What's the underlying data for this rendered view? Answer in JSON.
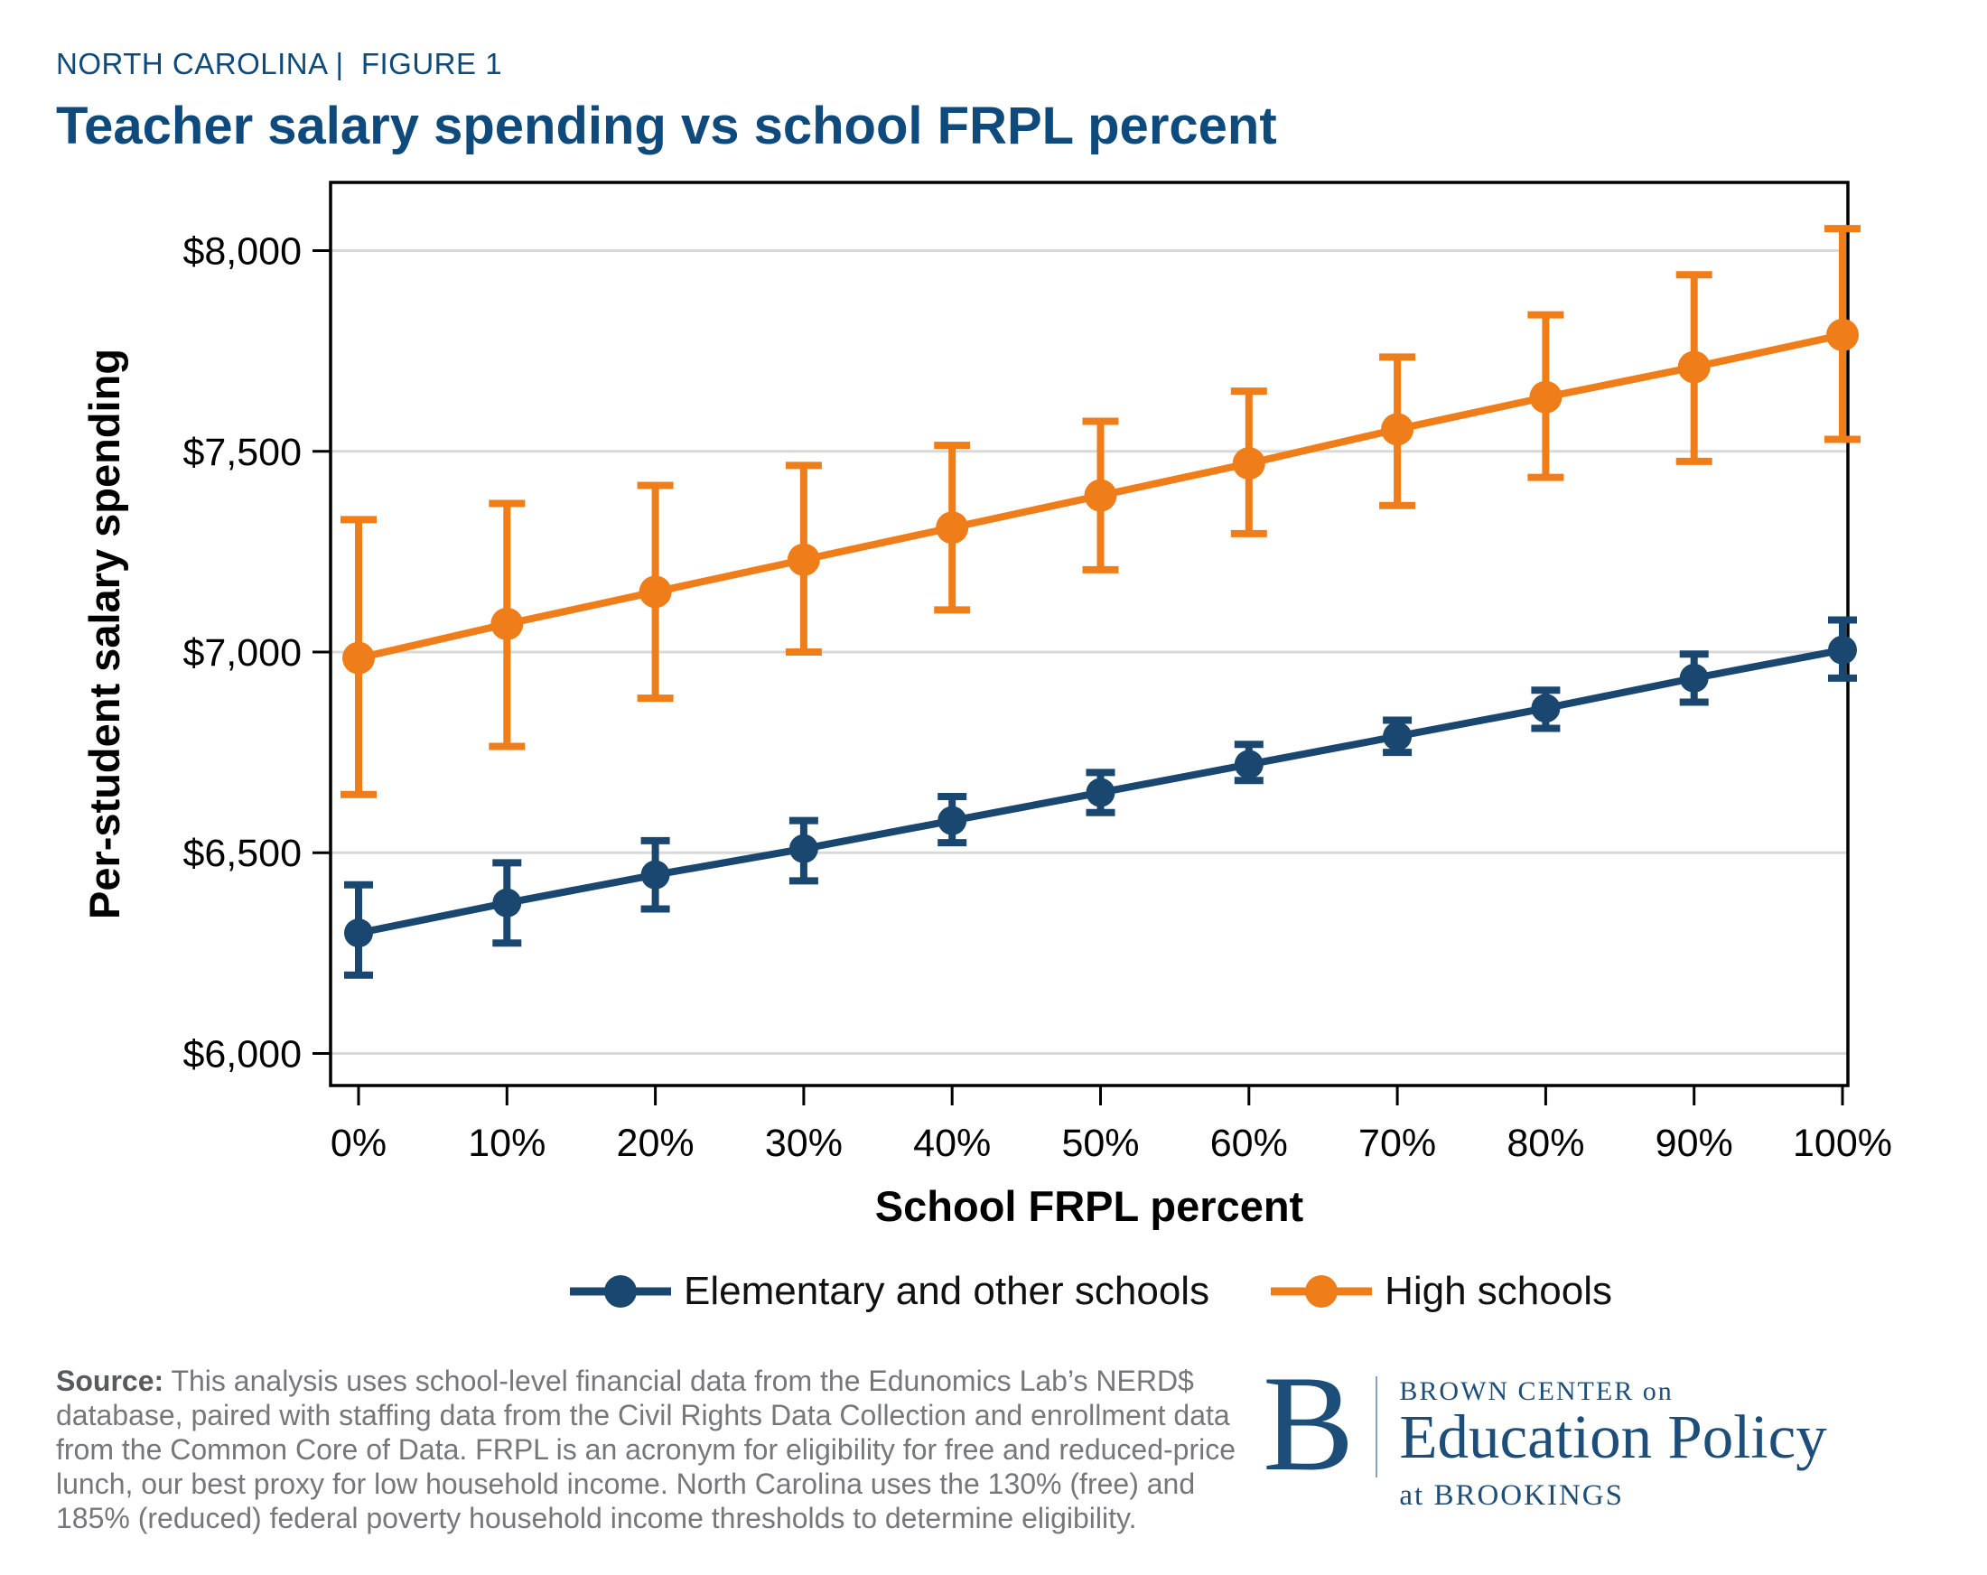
{
  "page": {
    "eyebrow": "NORTH CAROLINA |  FIGURE 1",
    "title": "Teacher salary spending vs school FRPL percent"
  },
  "colors": {
    "title_navy": "#0e4a7c",
    "logo_navy": "#1d4e79",
    "elementary_blue": "#1a476f",
    "high_school_orange": "#ef7d1a",
    "gridline_gray": "#d9d9d9",
    "source_gray": "#76777a"
  },
  "chart_data": {
    "type": "line",
    "title": "Teacher salary spending vs school FRPL percent",
    "xlabel": "School FRPL percent",
    "ylabel": "Per-student salary spending",
    "x": [
      "0%",
      "10%",
      "20%",
      "30%",
      "40%",
      "50%",
      "60%",
      "70%",
      "80%",
      "90%",
      "100%"
    ],
    "y_ticks": [
      "$8,000",
      "$7,500",
      "$7,000",
      "$6,500",
      "$6,000"
    ],
    "y_tick_values": [
      8000,
      7500,
      7000,
      6500,
      6000
    ],
    "ylim": [
      5920,
      8170
    ],
    "grid": "horizontal-only",
    "legend_position": "bottom",
    "series": [
      {
        "name": "Elementary and other schools",
        "id": "elementary",
        "color": "#1a476f",
        "values": [
          6300,
          6375,
          6445,
          6510,
          6580,
          6650,
          6720,
          6790,
          6860,
          6935,
          7005
        ],
        "ci_low": [
          6195,
          6275,
          6360,
          6430,
          6525,
          6600,
          6680,
          6750,
          6810,
          6875,
          6935
        ],
        "ci_high": [
          6420,
          6475,
          6530,
          6580,
          6640,
          6700,
          6770,
          6830,
          6905,
          6995,
          7080
        ]
      },
      {
        "name": "High schools",
        "id": "high-schools",
        "color": "#ef7d1a",
        "values": [
          6985,
          7070,
          7150,
          7230,
          7310,
          7390,
          7470,
          7555,
          7635,
          7710,
          7790
        ],
        "ci_low": [
          6645,
          6765,
          6885,
          7000,
          7105,
          7205,
          7295,
          7365,
          7435,
          7475,
          7530
        ],
        "ci_high": [
          7330,
          7370,
          7415,
          7465,
          7515,
          7575,
          7650,
          7735,
          7840,
          7940,
          8055
        ]
      }
    ]
  },
  "source": {
    "label": "Source:",
    "text": " This analysis uses school-level financial data from the Edunomics Lab’s NERD$ database, paired with staffing data from the Civil Rights Data Collection and enrollment data from the Common Core of Data. FRPL is an acronym for eligibility for free and reduced-price lunch, our best proxy for low household income. North Carolina uses the 130% (free) and 185% (reduced) federal poverty household income thresholds to determine eligibility."
  },
  "logo": {
    "monogram": "B",
    "line1": "BROWN CENTER on",
    "line2": "Education Policy",
    "line3": "at BROOKINGS"
  }
}
